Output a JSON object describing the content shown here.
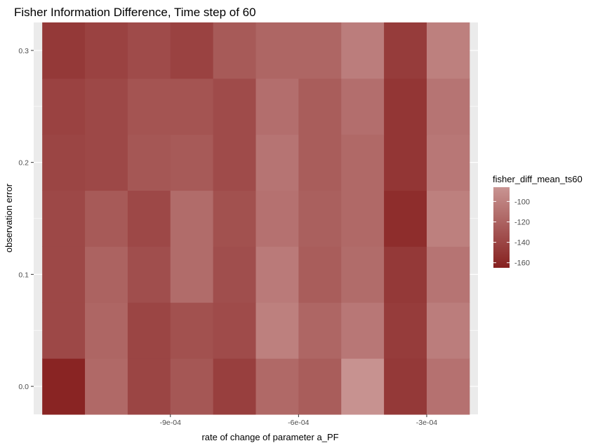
{
  "chart_data": {
    "type": "heatmap",
    "title": "Fisher Information Difference, Time step of 60",
    "xlabel": "rate of change of parameter a_PF",
    "ylabel": "observation error",
    "x_values": [
      -0.00115,
      -0.00105,
      -0.00095,
      -0.00085,
      -0.00075,
      -0.00065,
      -0.00055,
      -0.00045,
      -0.00035,
      -0.00025
    ],
    "y_values": [
      0.0,
      0.05,
      0.1,
      0.15,
      0.2,
      0.25,
      0.3
    ],
    "xlim": [
      -0.00122,
      -0.00018
    ],
    "ylim": [
      -0.025,
      0.325
    ],
    "x_ticks": [
      {
        "value": -0.0009,
        "label": "-9e-04"
      },
      {
        "value": -0.0006,
        "label": "-6e-04"
      },
      {
        "value": -0.0003,
        "label": "-3e-04"
      }
    ],
    "y_ticks": [
      {
        "value": 0.0,
        "label": "0.0"
      },
      {
        "value": 0.1,
        "label": "0.1"
      },
      {
        "value": 0.2,
        "label": "0.2"
      },
      {
        "value": 0.3,
        "label": "0.3"
      }
    ],
    "values": [
      [
        -162,
        -116,
        -140,
        -128,
        -144,
        -116,
        -124,
        -88,
        -148,
        -110
      ],
      [
        -138,
        -118,
        -140,
        -132,
        -136,
        -100,
        -118,
        -106,
        -146,
        -102
      ],
      [
        -138,
        -120,
        -134,
        -114,
        -134,
        -104,
        -124,
        -114,
        -148,
        -108
      ],
      [
        -138,
        -126,
        -138,
        -114,
        -132,
        -110,
        -122,
        -116,
        -156,
        -100
      ],
      [
        -140,
        -138,
        -128,
        -126,
        -136,
        -108,
        -124,
        -116,
        -150,
        -106
      ],
      [
        -142,
        -138,
        -130,
        -130,
        -136,
        -112,
        -124,
        -112,
        -150,
        -108
      ],
      [
        -148,
        -142,
        -136,
        -142,
        -126,
        -118,
        -118,
        -102,
        -146,
        -100
      ]
    ],
    "legend": {
      "title": "fisher_diff_mean_ts60",
      "placement": "right",
      "low_color": "#86201f",
      "high_color": "#c99593",
      "min": -165,
      "max": -86,
      "breaks": [
        {
          "value": -100,
          "label": "-100"
        },
        {
          "value": -120,
          "label": "-120"
        },
        {
          "value": -140,
          "label": "-140"
        },
        {
          "value": -160,
          "label": "-160"
        }
      ]
    },
    "grid": true,
    "panel_background": "#ebebeb"
  }
}
